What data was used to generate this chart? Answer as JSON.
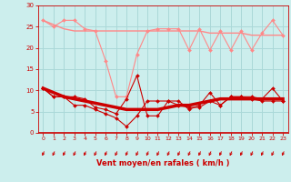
{
  "x": [
    0,
    1,
    2,
    3,
    4,
    5,
    6,
    7,
    8,
    9,
    10,
    11,
    12,
    13,
    14,
    15,
    16,
    17,
    18,
    19,
    20,
    21,
    22,
    23
  ],
  "line1_rafales": [
    26.5,
    25.0,
    26.5,
    26.5,
    24.5,
    24.0,
    17.0,
    8.5,
    8.5,
    18.5,
    24.0,
    24.5,
    24.5,
    24.5,
    19.5,
    24.5,
    19.5,
    24.0,
    19.5,
    24.0,
    19.5,
    23.5,
    26.5,
    23.0
  ],
  "line2_rafales_smooth": [
    26.5,
    25.5,
    24.5,
    24.0,
    24.0,
    24.0,
    24.0,
    24.0,
    24.0,
    24.0,
    24.0,
    24.0,
    24.0,
    24.0,
    24.0,
    24.0,
    23.5,
    23.5,
    23.5,
    23.5,
    23.0,
    23.0,
    23.0,
    23.0
  ],
  "line3_vent": [
    10.5,
    8.5,
    8.5,
    8.5,
    8.0,
    6.0,
    5.5,
    4.5,
    8.0,
    13.5,
    4.0,
    4.0,
    7.5,
    7.5,
    5.5,
    6.5,
    9.5,
    6.5,
    8.5,
    8.5,
    8.5,
    8.0,
    10.5,
    7.5
  ],
  "line4_vent_smooth": [
    10.5,
    9.5,
    8.5,
    8.0,
    7.5,
    7.0,
    6.5,
    6.0,
    5.5,
    5.5,
    5.5,
    5.5,
    6.0,
    6.5,
    6.5,
    7.0,
    7.5,
    8.0,
    8.0,
    8.0,
    8.0,
    8.0,
    8.0,
    8.0
  ],
  "line5_vent2": [
    10.5,
    8.5,
    8.5,
    6.5,
    6.5,
    5.5,
    4.5,
    3.5,
    1.5,
    4.0,
    7.5,
    7.5,
    7.5,
    6.5,
    6.0,
    6.0,
    7.5,
    6.5,
    8.5,
    8.5,
    8.0,
    7.5,
    7.5,
    7.5
  ],
  "xlabel": "Vent moyen/en rafales ( km/h )",
  "yticks": [
    0,
    5,
    10,
    15,
    20,
    25,
    30
  ],
  "xticks": [
    0,
    1,
    2,
    3,
    4,
    5,
    6,
    7,
    8,
    9,
    10,
    11,
    12,
    13,
    14,
    15,
    16,
    17,
    18,
    19,
    20,
    21,
    22,
    23
  ],
  "bg_color": "#cceeed",
  "grid_color": "#aad8d8",
  "line_color_dark": "#cc0000",
  "line_color_light": "#ff8888",
  "tick_color": "#cc0000",
  "label_color": "#cc0000"
}
